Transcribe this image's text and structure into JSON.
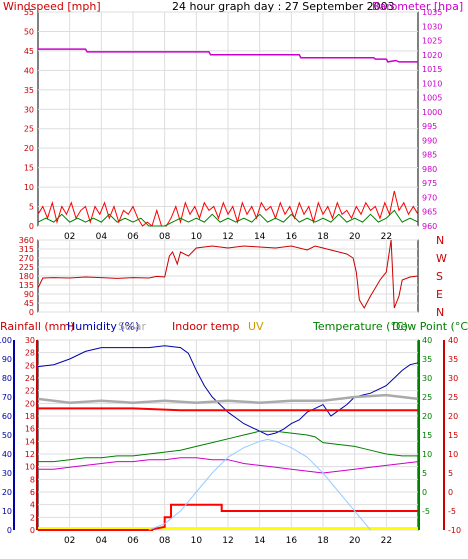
{
  "colors": {
    "wind": "#ff0000",
    "gust_green": "#008000",
    "barometer": "#cc00cc",
    "direction": "#cc0000",
    "rain": "#ff0000",
    "humidity": "#0000aa",
    "solar": "#aaaaaa",
    "indoor": "#ff0000",
    "uv": "#cc9900",
    "temperature": "#008000",
    "dew_point": "#cc00cc",
    "grid": "#dddddd",
    "axis_text": "#000000",
    "uv_fill": "#ffff00",
    "solar_curve": "#99ccff",
    "rain_axis": "#cc0000",
    "humidity_axis": "#0000aa",
    "temp_axis": "#008000",
    "dew_axis": "#cc0000"
  },
  "chart_data": [
    {
      "type": "line",
      "title": "24 hour graph day : 27 September 2003",
      "left_label": "Windspeed [mph]",
      "right_label": "Barometer [hpa]",
      "x_ticks": [
        "02",
        "04",
        "06",
        "08",
        "10",
        "12",
        "14",
        "16",
        "18",
        "20",
        "22"
      ],
      "x_range": [
        0,
        24
      ],
      "left_range": [
        0,
        55
      ],
      "left_ticks": [
        0,
        5,
        10,
        15,
        20,
        25,
        30,
        35,
        40,
        45,
        50,
        55
      ],
      "right_range": [
        960,
        1035
      ],
      "right_ticks": [
        960,
        965,
        970,
        975,
        980,
        985,
        990,
        995,
        1000,
        1005,
        1010,
        1015,
        1020,
        1025,
        1030,
        1035
      ],
      "series": [
        {
          "key": "barometer",
          "axis": "right",
          "x": [
            0,
            3,
            3.1,
            10.8,
            10.9,
            11.3,
            11.4,
            16.5,
            16.6,
            21.2,
            21.3,
            22.0,
            22.1,
            22.6,
            22.8,
            24
          ],
          "y": [
            1022,
            1022,
            1021,
            1021,
            1020,
            1020,
            1020,
            1020,
            1019,
            1019,
            1018.5,
            1018.5,
            1017.5,
            1018,
            1017.5,
            1017.5
          ]
        },
        {
          "key": "wind",
          "axis": "left",
          "x": [
            0,
            0.3,
            0.6,
            0.9,
            1.2,
            1.5,
            1.8,
            2.1,
            2.4,
            2.7,
            3.0,
            3.3,
            3.6,
            3.9,
            4.2,
            4.5,
            4.8,
            5.1,
            5.4,
            5.7,
            6.0,
            6.3,
            6.6,
            6.9,
            7.2,
            7.5,
            7.8,
            8.1,
            8.4,
            8.7,
            9.0,
            9.3,
            9.6,
            9.9,
            10.2,
            10.5,
            10.8,
            11.1,
            11.4,
            11.7,
            12.0,
            12.3,
            12.6,
            12.9,
            13.2,
            13.5,
            13.8,
            14.1,
            14.4,
            14.7,
            15.0,
            15.3,
            15.6,
            15.9,
            16.2,
            16.5,
            16.8,
            17.1,
            17.4,
            17.7,
            18.0,
            18.3,
            18.6,
            18.9,
            19.2,
            19.5,
            19.8,
            20.1,
            20.4,
            20.7,
            21.0,
            21.3,
            21.6,
            21.9,
            22.2,
            22.5,
            22.8,
            23.1,
            23.4,
            23.7,
            24.0
          ],
          "y": [
            3,
            5,
            2,
            6,
            1,
            5,
            3,
            6,
            2,
            4,
            5,
            1,
            5,
            3,
            6,
            2,
            5,
            1,
            4,
            3,
            5,
            2,
            0,
            1,
            0,
            4,
            0,
            0,
            2,
            5,
            1,
            6,
            3,
            5,
            2,
            6,
            4,
            5,
            2,
            6,
            3,
            5,
            1,
            6,
            3,
            5,
            2,
            6,
            4,
            5,
            2,
            6,
            3,
            5,
            2,
            6,
            3,
            5,
            1,
            6,
            3,
            5,
            2,
            6,
            3,
            4,
            2,
            5,
            3,
            6,
            4,
            5,
            2,
            6,
            3,
            9,
            4,
            6,
            3,
            5,
            3
          ]
        },
        {
          "key": "gust_green",
          "axis": "left",
          "x": [
            0,
            0.5,
            1,
            1.5,
            2,
            2.5,
            3,
            3.5,
            4,
            4.5,
            5,
            5.5,
            6,
            6.5,
            7,
            7.5,
            8,
            8.5,
            9,
            9.5,
            10,
            10.5,
            11,
            11.5,
            12,
            12.5,
            13,
            13.5,
            14,
            14.5,
            15,
            15.5,
            16,
            16.5,
            17,
            17.5,
            18,
            18.5,
            19,
            19.5,
            20,
            20.5,
            21,
            21.5,
            22,
            22.5,
            23,
            23.5,
            24
          ],
          "y": [
            1,
            2,
            1,
            3,
            1,
            2,
            1,
            2,
            1,
            3,
            1,
            2,
            1,
            2,
            0,
            0,
            0,
            1,
            2,
            1,
            2,
            1,
            3,
            1,
            2,
            1,
            2,
            1,
            3,
            1,
            2,
            1,
            3,
            1,
            2,
            1,
            2,
            1,
            3,
            1,
            2,
            1,
            3,
            1,
            2,
            4,
            1,
            2,
            1
          ]
        }
      ]
    },
    {
      "type": "line",
      "left_ticks": [
        0,
        45,
        90,
        135,
        180,
        225,
        270,
        315,
        360
      ],
      "left_range": [
        0,
        360
      ],
      "right_labels": [
        "N",
        "W",
        "S",
        "E",
        "N"
      ],
      "x_range": [
        0,
        24
      ],
      "series": [
        {
          "key": "direction",
          "x": [
            0,
            0.3,
            1,
            2,
            3,
            4,
            5,
            6,
            7,
            7.5,
            8,
            8.3,
            8.5,
            8.8,
            9,
            9.5,
            10,
            11,
            12,
            13,
            14,
            15,
            16,
            17,
            17.5,
            18,
            18.5,
            19,
            19.5,
            19.9,
            20.1,
            20.3,
            20.6,
            21,
            21.3,
            21.6,
            22,
            22.3,
            22.5,
            22.8,
            23,
            23.5,
            24
          ],
          "y": [
            120,
            170,
            172,
            170,
            175,
            172,
            168,
            172,
            170,
            178,
            175,
            280,
            300,
            240,
            300,
            280,
            320,
            330,
            320,
            330,
            325,
            320,
            330,
            310,
            330,
            320,
            310,
            300,
            290,
            270,
            200,
            60,
            20,
            80,
            120,
            160,
            200,
            360,
            20,
            80,
            160,
            175,
            180
          ]
        }
      ]
    },
    {
      "type": "line",
      "labels": {
        "rain": "Rainfall (mm)",
        "humidity": "Humidity (%)",
        "solar": "Solar",
        "indoor": "Indoor temp",
        "uv": "UV",
        "temperature": "Temperature (°C)",
        "dew_point": "Dew Point (°C)"
      },
      "rain_ticks": [
        0,
        2,
        4,
        6,
        8,
        10,
        12,
        14,
        16,
        18,
        20,
        22,
        24,
        26,
        28,
        30
      ],
      "rain_range": [
        0,
        30
      ],
      "humidity_ticks": [
        0,
        10,
        20,
        30,
        40,
        50,
        60,
        70,
        80,
        90,
        100
      ],
      "humidity_range": [
        0,
        100
      ],
      "temp_ticks": [
        -5,
        0,
        5,
        10,
        15,
        20,
        25,
        30,
        35,
        40
      ],
      "temp_range": [
        -10,
        40
      ],
      "dew_ticks": [
        -10,
        -5,
        0,
        5,
        10,
        15,
        20,
        25,
        30,
        35,
        40
      ],
      "dew_range": [
        -10,
        40
      ],
      "x_range": [
        0,
        24
      ],
      "series": [
        {
          "key": "humidity",
          "axis": "humidity",
          "x": [
            0,
            1,
            2,
            3,
            4,
            5,
            6,
            7,
            8,
            9,
            9.5,
            10,
            10.5,
            11,
            11.5,
            12,
            12.5,
            13,
            13.5,
            14,
            14.5,
            15,
            15.5,
            16,
            16.5,
            17,
            17.5,
            18,
            18.5,
            19,
            19.5,
            20,
            21,
            22,
            22.5,
            23,
            23.5,
            24
          ],
          "y": [
            86,
            87,
            90,
            94,
            96,
            96,
            96,
            96,
            97,
            96,
            93,
            84,
            76,
            70,
            66,
            62,
            59,
            56,
            54,
            52,
            50,
            51,
            53,
            56,
            58,
            62,
            64,
            66,
            60,
            63,
            66,
            70,
            72,
            76,
            80,
            84,
            87,
            88
          ]
        },
        {
          "key": "solar",
          "axis": "temp",
          "x": [
            0,
            2,
            4,
            6,
            8,
            10,
            12,
            14,
            16,
            18,
            20,
            22,
            24
          ],
          "y": [
            24.5,
            23.5,
            24,
            23.5,
            24,
            23.5,
            24,
            23.5,
            24,
            24,
            25,
            25.5,
            24.5
          ]
        },
        {
          "key": "indoor",
          "axis": "temp",
          "x": [
            0,
            3,
            6,
            9,
            12,
            15,
            18,
            21,
            24
          ],
          "y": [
            22,
            22,
            22,
            21.5,
            21.5,
            21.5,
            21.5,
            21.5,
            21.5
          ]
        },
        {
          "key": "temperature",
          "axis": "temp",
          "x": [
            0,
            1,
            2,
            3,
            4,
            5,
            6,
            7,
            8,
            9,
            10,
            11,
            12,
            13,
            13.5,
            14,
            15,
            16,
            17,
            17.5,
            18,
            19,
            20,
            20.5,
            21,
            22,
            23,
            24
          ],
          "y": [
            8,
            8,
            8.5,
            9,
            9,
            9.5,
            9.5,
            10,
            10.5,
            11,
            12,
            13,
            14,
            15,
            15.5,
            16,
            16,
            15.5,
            15,
            14.5,
            13,
            12.5,
            12,
            11.5,
            11,
            10,
            9.5,
            9.5
          ]
        },
        {
          "key": "dew_point",
          "axis": "dew",
          "x": [
            0,
            1,
            2,
            3,
            4,
            5,
            6,
            7,
            8,
            9,
            10,
            11,
            12,
            13,
            14,
            15,
            16,
            17,
            18,
            19,
            20,
            21,
            22,
            23,
            24
          ],
          "y": [
            6,
            6,
            6.5,
            7,
            7.5,
            8,
            8,
            8.5,
            8.5,
            9,
            9,
            8.5,
            8.5,
            7.5,
            7,
            6.5,
            6,
            5.5,
            5,
            5.5,
            6,
            6.5,
            7,
            7.5,
            8
          ]
        },
        {
          "key": "rain",
          "axis": "rain",
          "x": [
            0,
            7.2,
            7.2,
            8.0,
            8.0,
            8.4,
            8.4,
            11.6,
            11.6,
            24
          ],
          "y": [
            0,
            0,
            0.1,
            0.5,
            2,
            2,
            4,
            4,
            3,
            3
          ]
        },
        {
          "key": "solar_curve",
          "axis": "rain",
          "x": [
            7,
            8,
            9,
            10,
            11,
            12,
            13,
            14,
            14.5,
            15,
            16,
            17,
            18,
            19,
            20,
            21
          ],
          "y": [
            0,
            1,
            3,
            6,
            9,
            11.5,
            13,
            14,
            14.3,
            14,
            13,
            11.5,
            9,
            6,
            3,
            0
          ]
        }
      ]
    }
  ]
}
